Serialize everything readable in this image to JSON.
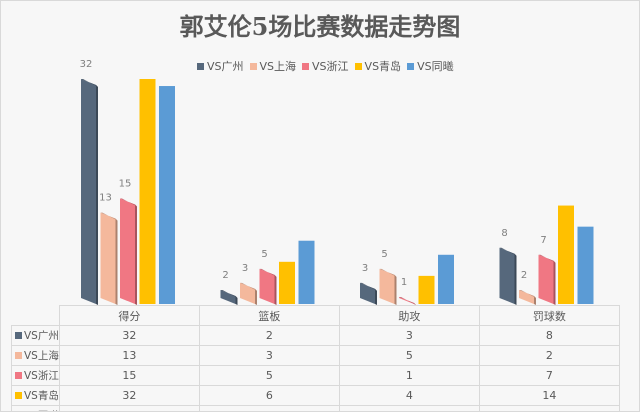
{
  "chart_data": {
    "type": "bar",
    "title": "郭艾伦5场比赛数据走势图",
    "categories": [
      "得分",
      "篮板",
      "助攻",
      "罚球数"
    ],
    "series": [
      {
        "name": "VS广州",
        "values": [
          32,
          2,
          3,
          8
        ],
        "color": "#56687c",
        "data_labels": true
      },
      {
        "name": "VS上海",
        "values": [
          13,
          3,
          5,
          2
        ],
        "color": "#f4b89c",
        "data_labels": true
      },
      {
        "name": "VS浙江",
        "values": [
          15,
          5,
          1,
          7
        ],
        "color": "#f07783",
        "data_labels": true
      },
      {
        "name": "VS青岛",
        "values": [
          32,
          6,
          4,
          14
        ],
        "color": "#ffc000",
        "data_labels": false
      },
      {
        "name": "VS同曦",
        "values": [
          31,
          9,
          7,
          11
        ],
        "color": "#5b9bd5",
        "data_labels": false
      }
    ],
    "legend": "top",
    "grid": false,
    "data_table": true,
    "ylim": [
      0,
      32
    ]
  }
}
